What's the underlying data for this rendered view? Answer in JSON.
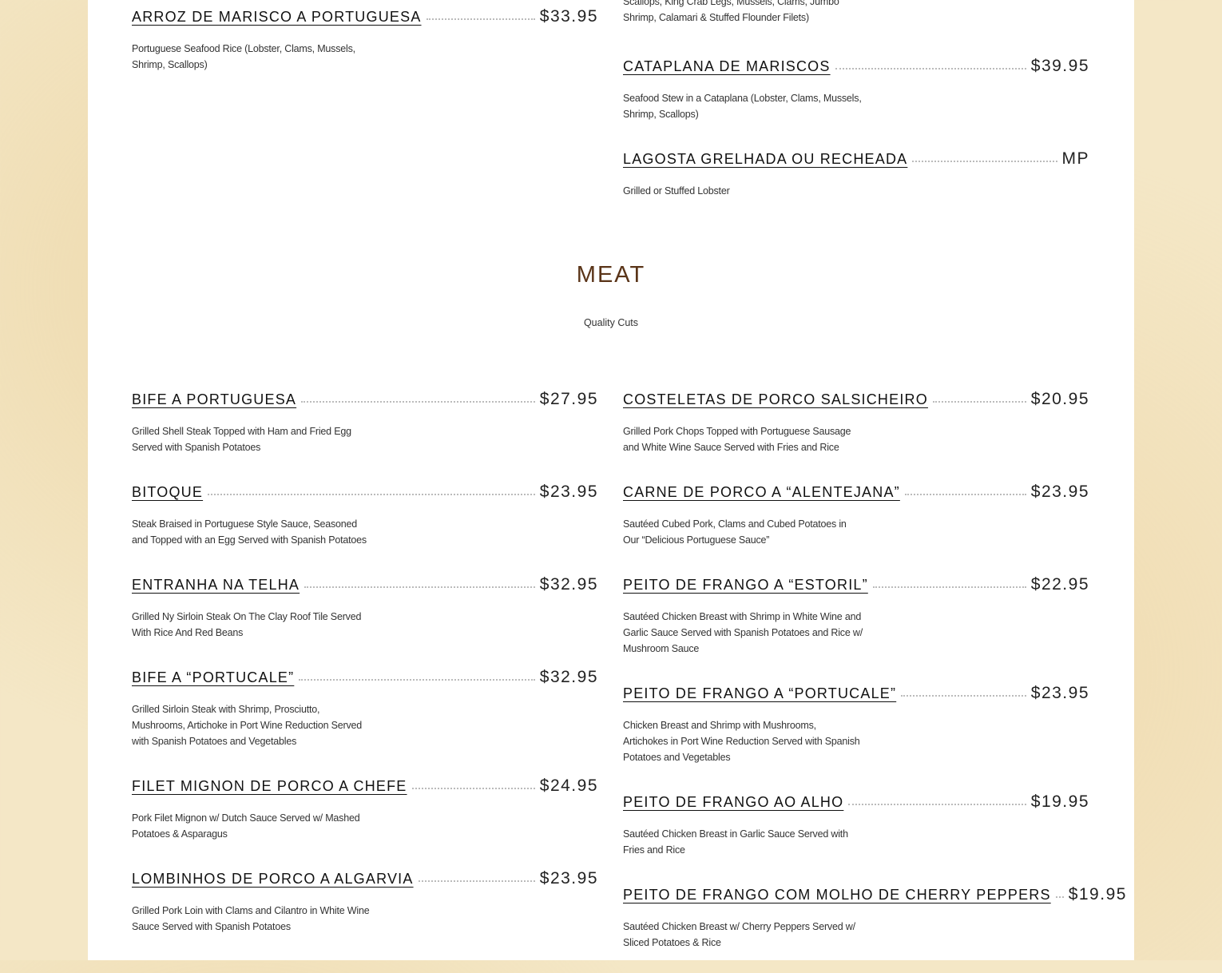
{
  "seafood": {
    "left": [
      {
        "name": "Arroz de Marisco a Portuguesa",
        "price": "$33.95",
        "desc": "Portuguese Seafood Rice (Lobster, Clams, Mussels, Shrimp, Scallops)"
      }
    ],
    "right_partial_desc": "Scallops, King Crab Legs, Mussels, Clams, Jumbo Shrimp, Calamari & Stuffed Flounder Filets)",
    "right": [
      {
        "name": "Cataplana de Mariscos",
        "price": "$39.95",
        "desc": "Seafood Stew in a Cataplana (Lobster, Clams, Mussels, Shrimp, Scallops)"
      },
      {
        "name": "Lagosta Grelhada ou Recheada",
        "price": "MP",
        "desc": "Grilled or Stuffed Lobster"
      }
    ]
  },
  "meat": {
    "title": "MEAT",
    "subtitle": "Quality Cuts",
    "left": [
      {
        "name": "Bife a Portuguesa",
        "price": "$27.95",
        "desc": "Grilled Shell Steak Topped with Ham and Fried Egg Served with Spanish Potatoes"
      },
      {
        "name": "Bitoque",
        "price": "$23.95",
        "desc": "Steak Braised in Portuguese Style Sauce, Seasoned and Topped with an Egg Served with Spanish Potatoes"
      },
      {
        "name": "Entranha na Telha",
        "price": "$32.95",
        "desc": "Grilled Ny Sirloin Steak On The Clay Roof Tile Served With Rice And Red Beans"
      },
      {
        "name": "Bife a “Portucale”",
        "price": "$32.95",
        "desc": "Grilled Sirloin Steak with Shrimp, Prosciutto, Mushrooms, Artichoke in Port Wine Reduction Served with Spanish Potatoes and Vegetables"
      },
      {
        "name": "Filet Mignon de Porco a Chefe",
        "price": "$24.95",
        "desc": "Pork Filet Mignon w/ Dutch Sauce Served w/ Mashed Potatoes & Asparagus"
      },
      {
        "name": "Lombinhos de Porco a Algarvia",
        "price": "$23.95",
        "desc": "Grilled Pork Loin with Clams and Cilantro in White Wine Sauce Served with Spanish Potatoes"
      }
    ],
    "right": [
      {
        "name": "Costeletas de Porco Salsicheiro",
        "price": "$20.95",
        "desc": "Grilled Pork Chops Topped with Portuguese Sausage and White Wine Sauce Served with Fries and Rice"
      },
      {
        "name": "Carne de Porco a “Alentejana”",
        "price": "$23.95",
        "desc": "Sautéed Cubed Pork, Clams and Cubed Potatoes in Our “Delicious Portuguese Sauce”"
      },
      {
        "name": "Peito de Frango a “Estoril”",
        "price": "$22.95",
        "desc": "Sautéed Chicken Breast with Shrimp in White Wine and Garlic Sauce Served with Spanish Potatoes and Rice w/ Mushroom Sauce"
      },
      {
        "name": "Peito de Frango a “Portucale”",
        "price": "$23.95",
        "desc": "Chicken Breast and Shrimp with Mushrooms, Artichokes in Port Wine Reduction Served with Spanish Potatoes and Vegetables"
      },
      {
        "name": "Peito de Frango ao Alho",
        "price": "$19.95",
        "desc": "Sautéed Chicken Breast in Garlic Sauce Served with Fries and Rice"
      },
      {
        "name": "Peito de Frango com Molho de Cherry Peppers",
        "price": "$19.95",
        "desc": "Sautéed Chicken Breast w/ Cherry Peppers Served w/ Sliced Potatoes & Rice"
      }
    ]
  }
}
